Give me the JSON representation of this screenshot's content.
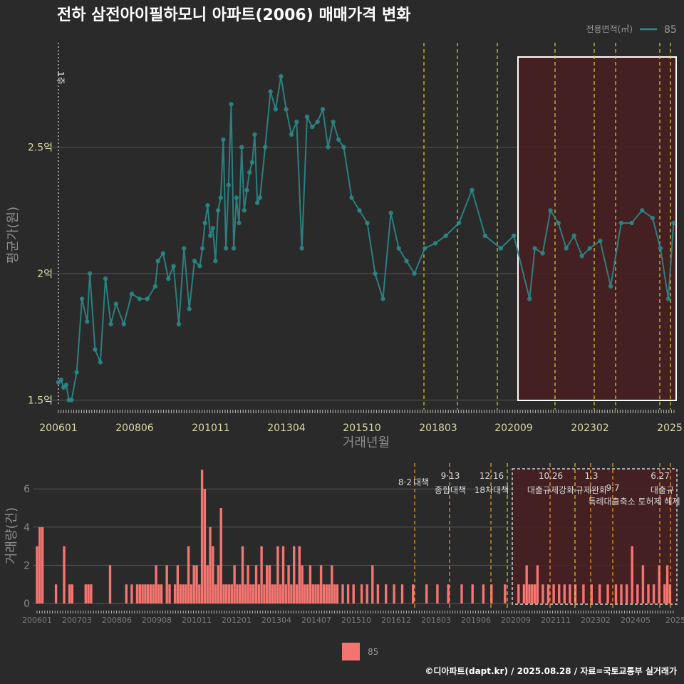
{
  "title": "전하 삼전아이필하모니 아파트(2006) 매매가격 변화",
  "legend": {
    "title": "전용면적(㎡)",
    "label": "85"
  },
  "colors": {
    "price": "#2a8a88",
    "volume": "#f47570",
    "event": "#e0d020",
    "event2": "#f0a020",
    "grid": "#555555",
    "highlight": "#5a1a1a"
  },
  "price_chart": {
    "ylabel": "평균가(원)",
    "xlabel": "거래년월",
    "yticks": [
      "1.5억",
      "2억",
      "2.5억"
    ],
    "xticks": [
      "200601",
      "200806",
      "201011",
      "201304",
      "201510",
      "201803",
      "202009",
      "202302",
      "2025"
    ],
    "marker_label": "1주"
  },
  "volume_chart": {
    "ylabel": "거래량(건)",
    "yticks": [
      "0",
      "2",
      "4",
      "6"
    ],
    "xticks": [
      "200601",
      "200703",
      "200806",
      "200908",
      "201011",
      "201201",
      "201304",
      "201407",
      "201510",
      "201612",
      "201803",
      "201906",
      "202009",
      "202111",
      "202302",
      "202405",
      "2025"
    ],
    "legend_label": "85"
  },
  "annotations": [
    {
      "date": "8·2",
      "text": "대책"
    },
    {
      "date": "9·13",
      "text": "종합대책"
    },
    {
      "date": "12·16",
      "text": "18차대책"
    },
    {
      "date": "10.26",
      "text": "대출규제강화"
    },
    {
      "date": "1.3",
      "text": "규제완화"
    },
    {
      "date": "9·7",
      "text": "특례대출축소 토허제 해제"
    },
    {
      "date": "6.27",
      "text": "대출규"
    }
  ],
  "credit": "©디아파트(dapt.kr) / 2025.08.28 / 자료=국토교통부 실거래가",
  "chart_data": [
    {
      "type": "line",
      "title": "전하 삼전아이필하모니 아파트(2006) 매매가격 변화",
      "xlabel": "거래년월",
      "ylabel": "평균가(원)",
      "ylim": [
        1.45,
        2.85
      ],
      "y_unit": "억",
      "series": [
        {
          "name": "85",
          "x": [
            "2006-01",
            "2006-02",
            "2006-03",
            "2006-04",
            "2006-05",
            "2006-06",
            "2006-08",
            "2006-10",
            "2006-12",
            "2007-01",
            "2007-03",
            "2007-05",
            "2007-07",
            "2007-09",
            "2007-11",
            "2008-02",
            "2008-05",
            "2008-08",
            "2008-11",
            "2009-02",
            "2009-03",
            "2009-05",
            "2009-07",
            "2009-09",
            "2009-11",
            "2010-01",
            "2010-03",
            "2010-05",
            "2010-07",
            "2010-08",
            "2010-09",
            "2010-10",
            "2010-11",
            "2010-12",
            "2011-01",
            "2011-02",
            "2011-03",
            "2011-04",
            "2011-05",
            "2011-06",
            "2011-07",
            "2011-08",
            "2011-09",
            "2011-10",
            "2011-11",
            "2011-12",
            "2012-01",
            "2012-02",
            "2012-03",
            "2012-04",
            "2012-05",
            "2012-06",
            "2012-08",
            "2012-10",
            "2012-12",
            "2013-02",
            "2013-04",
            "2013-06",
            "2013-08",
            "2013-10",
            "2013-12",
            "2014-02",
            "2014-04",
            "2014-06",
            "2014-08",
            "2014-10",
            "2014-12",
            "2015-02",
            "2015-05",
            "2015-08",
            "2015-11",
            "2016-02",
            "2016-05",
            "2016-08",
            "2016-11",
            "2017-02",
            "2017-05",
            "2017-09",
            "2018-01",
            "2018-05",
            "2018-10",
            "2019-03",
            "2019-08",
            "2020-02",
            "2020-07",
            "2021-01",
            "2021-03",
            "2021-06",
            "2021-09",
            "2021-12",
            "2022-03",
            "2022-06",
            "2022-09",
            "2022-12",
            "2023-04",
            "2023-08",
            "2023-12",
            "2024-04",
            "2024-08",
            "2024-12",
            "2025-03",
            "2025-06",
            "2025-08"
          ],
          "values": [
            1.57,
            1.58,
            1.55,
            1.56,
            1.5,
            1.5,
            1.61,
            1.9,
            1.81,
            2.0,
            1.7,
            1.65,
            1.98,
            1.8,
            1.88,
            1.8,
            1.92,
            1.9,
            1.9,
            1.95,
            2.05,
            2.08,
            1.98,
            2.03,
            1.8,
            2.1,
            1.86,
            2.05,
            2.03,
            2.1,
            2.2,
            2.27,
            2.15,
            2.18,
            2.05,
            2.25,
            2.3,
            2.53,
            2.1,
            2.35,
            2.67,
            2.1,
            2.3,
            2.2,
            2.5,
            2.25,
            2.33,
            2.4,
            2.44,
            2.55,
            2.28,
            2.3,
            2.5,
            2.72,
            2.65,
            2.78,
            2.65,
            2.55,
            2.6,
            2.1,
            2.62,
            2.58,
            2.6,
            2.65,
            2.5,
            2.6,
            2.53,
            2.5,
            2.3,
            2.25,
            2.2,
            2.0,
            1.9,
            2.24,
            2.1,
            2.05,
            2.0,
            2.1,
            2.12,
            2.15,
            2.2,
            2.33,
            2.15,
            2.1,
            2.15,
            1.9,
            2.1,
            2.08,
            2.25,
            2.2,
            2.1,
            2.15,
            2.07,
            2.1,
            2.13,
            1.95,
            2.2,
            2.2,
            2.25,
            2.22,
            2.1,
            1.9,
            2.2
          ]
        }
      ]
    },
    {
      "type": "bar",
      "title": "",
      "ylabel": "거래량(건)",
      "ylim": [
        0,
        7
      ],
      "series": [
        {
          "name": "85",
          "x": [
            "2006-01",
            "2006-02",
            "2006-03",
            "2006-08",
            "2006-11",
            "2007-01",
            "2007-02",
            "2007-07",
            "2007-08",
            "2007-09",
            "2008-04",
            "2008-10",
            "2008-12",
            "2009-02",
            "2009-03",
            "2009-04",
            "2009-05",
            "2009-06",
            "2009-07",
            "2009-08",
            "2009-09",
            "2009-10",
            "2009-11",
            "2010-01",
            "2010-02",
            "2010-04",
            "2010-05",
            "2010-06",
            "2010-07",
            "2010-08",
            "2010-09",
            "2010-10",
            "2010-11",
            "2010-12",
            "2011-01",
            "2011-02",
            "2011-03",
            "2011-04",
            "2011-05",
            "2011-06",
            "2011-07",
            "2011-08",
            "2011-09",
            "2011-10",
            "2011-11",
            "2011-12",
            "2012-01",
            "2012-02",
            "2012-03",
            "2012-04",
            "2012-05",
            "2012-06",
            "2012-07",
            "2012-08",
            "2012-09",
            "2012-10",
            "2012-11",
            "2012-12",
            "2013-01",
            "2013-02",
            "2013-03",
            "2013-04",
            "2013-05",
            "2013-06",
            "2013-07",
            "2013-08",
            "2013-09",
            "2013-10",
            "2013-11",
            "2013-12",
            "2014-01",
            "2014-02",
            "2014-03",
            "2014-04",
            "2014-05",
            "2014-06",
            "2014-07",
            "2014-08",
            "2014-09",
            "2014-10",
            "2014-11",
            "2014-12",
            "2015-01",
            "2015-02",
            "2015-03",
            "2015-04",
            "2015-06",
            "2015-08",
            "2015-10",
            "2016-01",
            "2016-03",
            "2016-05",
            "2016-07",
            "2016-10",
            "2017-01",
            "2017-04",
            "2017-08",
            "2018-01",
            "2018-05",
            "2018-09",
            "2019-02",
            "2019-06",
            "2019-10",
            "2020-01",
            "2020-06",
            "2020-11",
            "2021-01",
            "2021-02",
            "2021-03",
            "2021-04",
            "2021-05",
            "2021-06",
            "2021-08",
            "2021-10",
            "2021-12",
            "2022-02",
            "2022-04",
            "2022-06",
            "2022-08",
            "2022-11",
            "2023-02",
            "2023-05",
            "2023-08",
            "2023-11",
            "2024-01",
            "2024-03",
            "2024-05",
            "2024-07",
            "2024-09",
            "2024-11",
            "2025-01",
            "2025-03",
            "2025-05",
            "2025-06",
            "2025-07"
          ],
          "values": [
            3,
            4,
            4,
            1,
            3,
            1,
            1,
            1,
            1,
            1,
            2,
            1,
            1,
            1,
            1,
            1,
            1,
            1,
            1,
            1,
            2,
            1,
            1,
            2,
            1,
            1,
            2,
            1,
            1,
            1,
            3,
            1,
            2,
            2,
            1,
            7,
            6,
            2,
            4,
            3,
            1,
            2,
            5,
            1,
            1,
            1,
            1,
            2,
            1,
            1,
            3,
            1,
            2,
            1,
            1,
            2,
            1,
            3,
            1,
            2,
            2,
            1,
            1,
            3,
            1,
            3,
            1,
            2,
            1,
            3,
            1,
            3,
            2,
            1,
            1,
            2,
            1,
            1,
            1,
            2,
            1,
            1,
            1,
            2,
            1,
            1,
            1,
            1,
            1,
            1,
            1,
            2,
            1,
            1,
            1,
            1,
            1,
            1,
            1,
            1,
            1,
            1,
            1,
            1,
            1,
            1,
            1,
            2,
            1,
            1,
            1,
            2,
            1,
            1,
            1,
            1,
            1,
            1,
            1,
            1,
            1,
            1,
            1,
            1,
            1,
            1,
            3,
            1,
            2,
            1,
            1,
            2,
            1,
            2,
            1
          ]
        }
      ]
    }
  ]
}
